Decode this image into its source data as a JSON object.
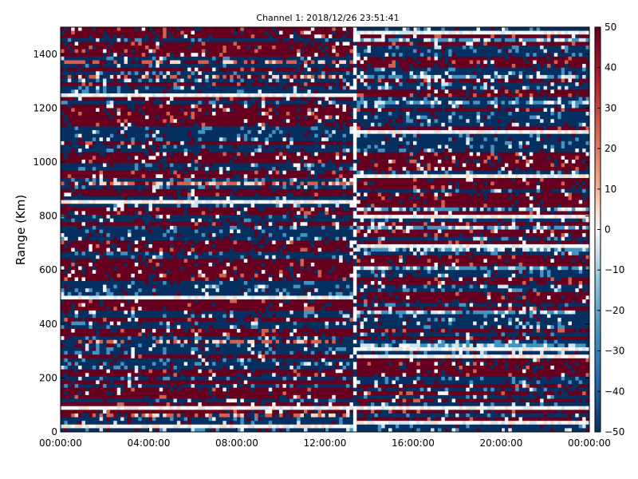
{
  "chart_data": {
    "type": "heatmap",
    "title": "Channel 1: 2018/12/26 23:51:41",
    "xlabel": "",
    "ylabel": "Range (Km)",
    "x_ticks": [
      "00:00:00",
      "04:00:00",
      "08:00:00",
      "12:00:00",
      "16:00:00",
      "20:00:00",
      "00:00:00"
    ],
    "y_ticks": [
      0,
      200,
      400,
      600,
      800,
      1000,
      1200,
      1400
    ],
    "ylim": [
      0,
      1500
    ],
    "colorbar": {
      "ticks": [
        50,
        40,
        30,
        20,
        10,
        0,
        -10,
        -20,
        -30,
        -40,
        -50
      ],
      "range": [
        -50,
        50
      ],
      "colormap": "RdBu_r"
    },
    "grid": false,
    "gap": {
      "time": "13:20:00",
      "note": "vertical white band of missing data"
    },
    "colors": {
      "strong_positive": "#67001f",
      "positive": "#d6604d",
      "weak_positive": "#fddbc7",
      "neutral": "#f7f7f7",
      "weak_negative": "#d1e5f0",
      "negative": "#4393c3",
      "strong_negative": "#053061"
    }
  }
}
